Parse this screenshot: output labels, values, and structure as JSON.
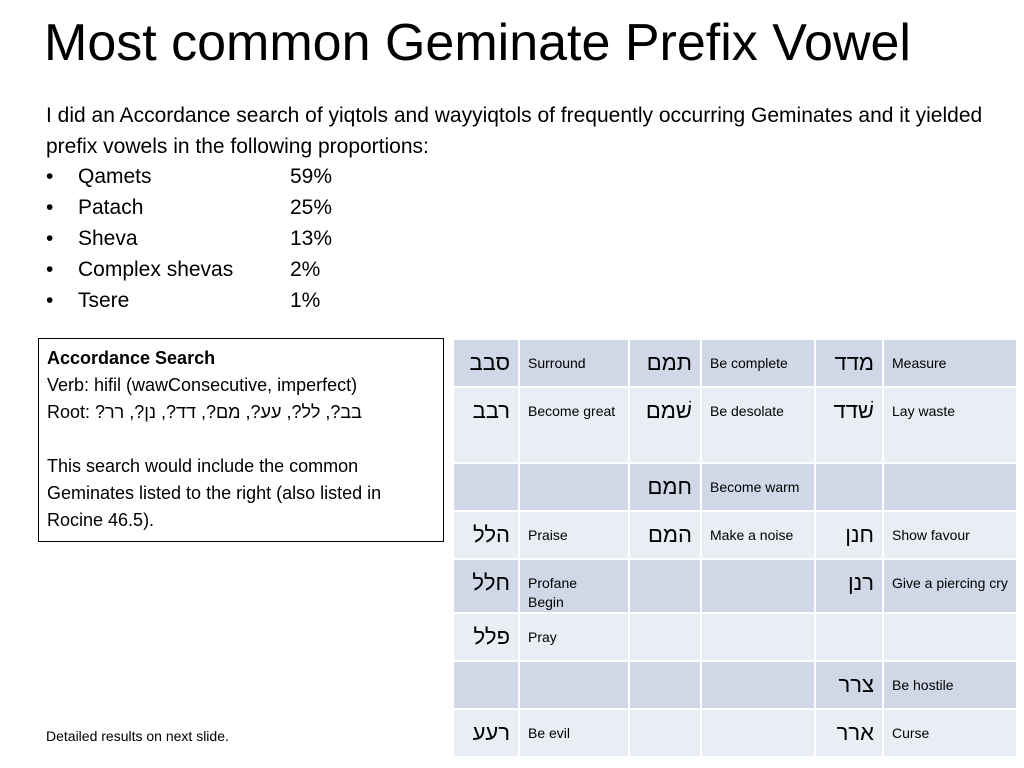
{
  "slide": {
    "title": "Most common Geminate Prefix Vowel",
    "intro": "I did an Accordance search of yiqtols and wayyiqtols of frequently occurring Geminates and it yielded prefix vowels in the following proportions:",
    "bullets": [
      {
        "name": "Qamets",
        "value": "59%"
      },
      {
        "name": "Patach",
        "value": "25%"
      },
      {
        "name": "Sheva",
        "value": "13%"
      },
      {
        "name": "Complex shevas",
        "value": "2%"
      },
      {
        "name": "Tsere",
        "value": "1%"
      }
    ],
    "bullet_glyph": "•",
    "search": {
      "heading": "Accordance Search",
      "verb_line": "Verb:   hifil (wawConsecutive, imperfect)",
      "root_label": "Root:",
      "root_values": "בב?, לל?, עע?, מם?, דד?, נן?, רר?",
      "note": "This search would include the common Geminates listed to the right (also listed in Rocine 46.5)."
    },
    "footnote": "Detailed results on next slide."
  },
  "table": {
    "rows": [
      [
        "סבב",
        "Surround",
        "תמם",
        "Be complete",
        "מדד",
        "Measure"
      ],
      [
        "רבב",
        "Become great",
        "שׁמם",
        "Be desolate",
        "שׁדד",
        "Lay waste"
      ],
      [
        "",
        "",
        "חמם",
        "Become warm",
        "",
        ""
      ],
      [
        "הלל",
        "Praise",
        "המם",
        "Make a noise",
        "חנן",
        "Show favour"
      ],
      [
        "חלל",
        "Profane\nBegin",
        "",
        "",
        "רנן",
        "Give a piercing cry"
      ],
      [
        "פלל",
        "Pray",
        "",
        "",
        "",
        ""
      ],
      [
        "",
        "",
        "",
        "",
        "צרר",
        "Be hostile"
      ],
      [
        "רעע",
        "Be evil",
        "",
        "",
        "ארר",
        "Curse"
      ]
    ]
  }
}
